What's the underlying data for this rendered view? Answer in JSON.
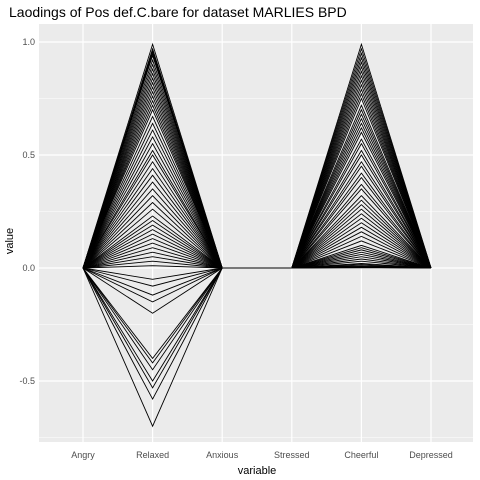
{
  "chart_data": {
    "type": "line",
    "title": "Laodings of Pos def.C.bare for dataset MARLIES BPD",
    "xlabel": "variable",
    "ylabel": "value",
    "categories": [
      "Angry",
      "Relaxed",
      "Anxious",
      "Stressed",
      "Cheerful",
      "Depressed"
    ],
    "y_ticks": [
      1.0,
      0.5,
      0.0,
      -0.5
    ],
    "y_tick_labels": [
      "1.0",
      "0.5",
      "0.0",
      "-0.5"
    ],
    "ylim": [
      -0.76,
      1.05
    ],
    "grid": true,
    "background": "#ebebeb",
    "line_color": "#000000",
    "series_shape": "each series is zero at Angry, Anxious, Stressed and Depressed and nonzero at Relaxed and Cheerful",
    "relaxed_values": [
      0.99,
      0.97,
      0.96,
      0.95,
      0.94,
      0.92,
      0.9,
      0.88,
      0.86,
      0.84,
      0.82,
      0.8,
      0.78,
      0.76,
      0.74,
      0.72,
      0.7,
      0.67,
      0.64,
      0.61,
      0.58,
      0.55,
      0.52,
      0.5,
      0.47,
      0.44,
      0.41,
      0.38,
      0.35,
      0.32,
      0.29,
      0.26,
      0.23,
      0.21,
      0.19,
      0.17,
      0.15,
      0.13,
      0.11,
      0.09,
      0.07,
      0.05,
      0.03,
      0.01,
      -0.05,
      -0.08,
      -0.12,
      -0.15,
      -0.2,
      -0.4,
      -0.42,
      -0.45,
      -0.5,
      -0.53,
      -0.58,
      -0.7
    ],
    "cheerful_values": [
      0.99,
      0.97,
      0.95,
      0.93,
      0.91,
      0.89,
      0.87,
      0.85,
      0.83,
      0.81,
      0.79,
      0.77,
      0.75,
      0.72,
      0.7,
      0.68,
      0.66,
      0.64,
      0.62,
      0.6,
      0.57,
      0.55,
      0.52,
      0.5,
      0.47,
      0.45,
      0.42,
      0.4,
      0.37,
      0.35,
      0.32,
      0.3,
      0.28,
      0.26,
      0.24,
      0.22,
      0.2,
      0.18,
      0.16,
      0.14,
      0.12,
      0.1,
      0.09,
      0.08,
      0.07,
      0.06,
      0.05,
      0.04,
      0.03,
      0.02,
      0.015,
      0.01,
      0.008,
      0.005,
      0.003,
      0.001
    ]
  }
}
